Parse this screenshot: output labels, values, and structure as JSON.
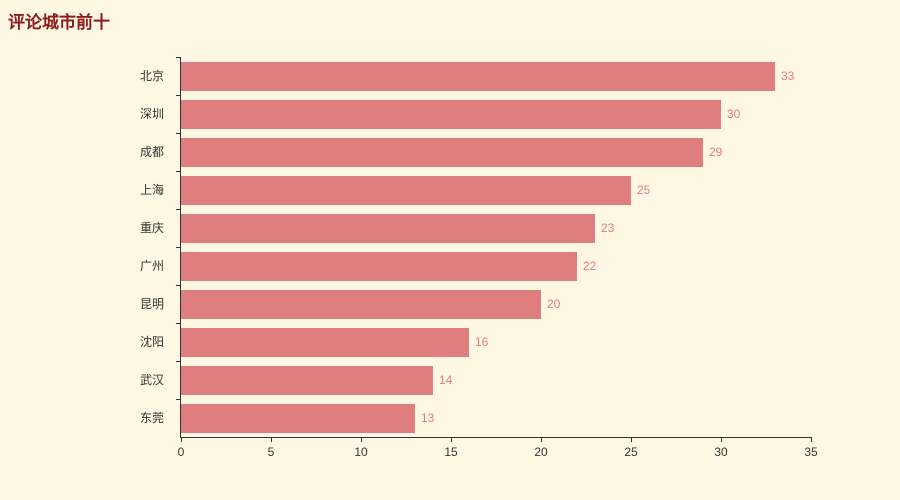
{
  "page": {
    "title": "评论城市前十"
  },
  "colors": {
    "background": "#fdf7e4",
    "title": "#8c1c1c",
    "bar": "#df7e7e",
    "value_label": "#df7e7e",
    "axis": "#333333",
    "tick_label": "#333333"
  },
  "chart_data": {
    "type": "bar",
    "orientation": "horizontal",
    "title": "评论城市前十",
    "categories": [
      "北京",
      "深圳",
      "成都",
      "上海",
      "重庆",
      "广州",
      "昆明",
      "沈阳",
      "武汉",
      "东莞"
    ],
    "values": [
      33,
      30,
      29,
      25,
      23,
      22,
      20,
      16,
      14,
      13
    ],
    "xlabel": "",
    "ylabel": "",
    "xlim": [
      0,
      35
    ],
    "x_ticks": [
      0,
      5,
      10,
      15,
      20,
      25,
      30,
      35
    ],
    "grid": false,
    "legend_position": "none",
    "value_labels_shown": true
  }
}
